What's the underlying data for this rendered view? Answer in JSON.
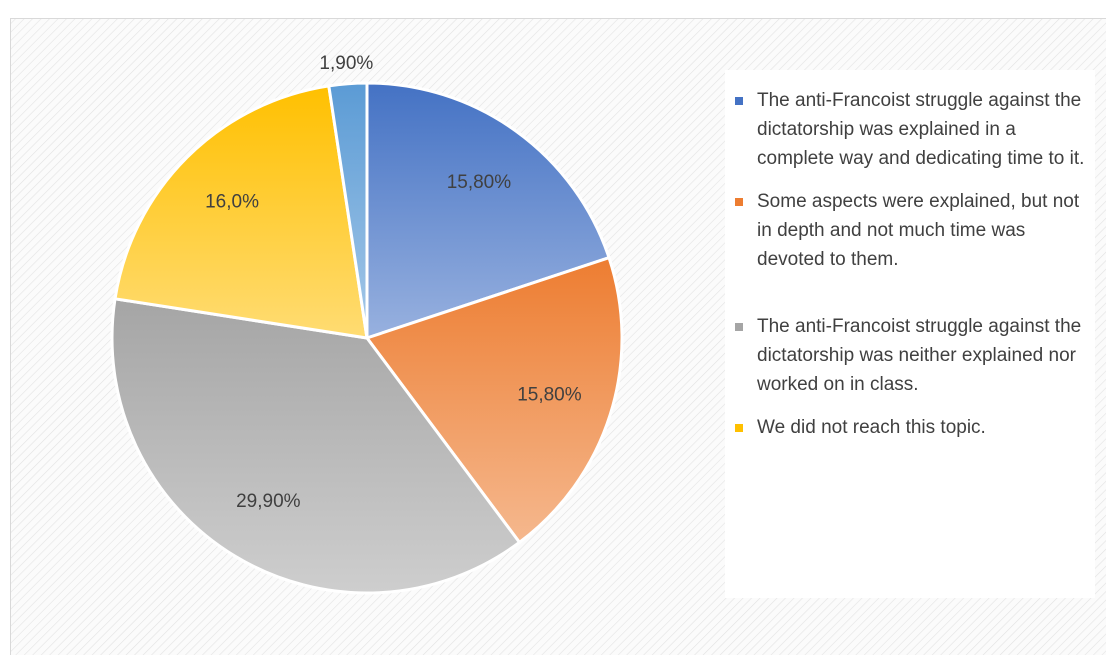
{
  "chart_data": {
    "type": "pie",
    "categories": [
      "The anti-Francoist struggle against the dictatorship was explained in a complete way and dedicating time to it.",
      "Some aspects were explained, but not in depth and not much time was devoted to them.",
      "The anti-Francoist struggle against the dictatorship was neither explained nor worked on in class.",
      "We did not reach this topic.",
      null
    ],
    "values": [
      15.8,
      15.8,
      29.9,
      16.0,
      1.9
    ],
    "value_labels": [
      "15,80%",
      "15,80%",
      "29,90%",
      "16,0%",
      "1,90%"
    ],
    "colors": [
      "#4472c4",
      "#ed7d31",
      "#a5a5a5",
      "#ffc000",
      "#5b9bd5"
    ],
    "legend": "right"
  }
}
